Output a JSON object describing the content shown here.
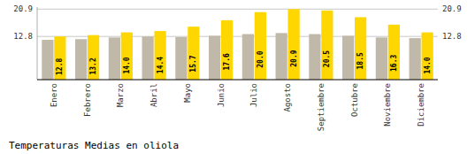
{
  "chart_data": {
    "type": "bar",
    "title": "Temperaturas Medias en oliola",
    "categories": [
      "Enero",
      "Febrero",
      "Marzo",
      "Abril",
      "Mayo",
      "Junio",
      "Julio",
      "Agosto",
      "Septiembre",
      "Octubre",
      "Noviembre",
      "Diciembre"
    ],
    "series": [
      {
        "color": "#C0B8A8",
        "values": [
          11.8,
          12.0,
          12.5,
          12.8,
          12.6,
          13.0,
          13.5,
          13.8,
          13.5,
          13.0,
          12.5,
          12.3
        ]
      },
      {
        "color": "#FFD700",
        "data_labels": true,
        "values": [
          12.8,
          13.2,
          14.0,
          14.4,
          15.7,
          17.6,
          20.0,
          20.9,
          20.5,
          18.5,
          16.3,
          14.0
        ],
        "value_labels": [
          "12.8",
          "13.2",
          "14.0",
          "14.4",
          "15.7",
          "17.6",
          "20.0",
          "20.9",
          "20.5",
          "18.5",
          "16.3",
          "14.0"
        ]
      }
    ],
    "ylim": [
      0,
      21.5
    ],
    "yticks": [
      12.8,
      20.9
    ],
    "y2lim": [
      0,
      21.5
    ],
    "y2ticks": [
      12.8,
      20.9
    ],
    "grid": true
  }
}
